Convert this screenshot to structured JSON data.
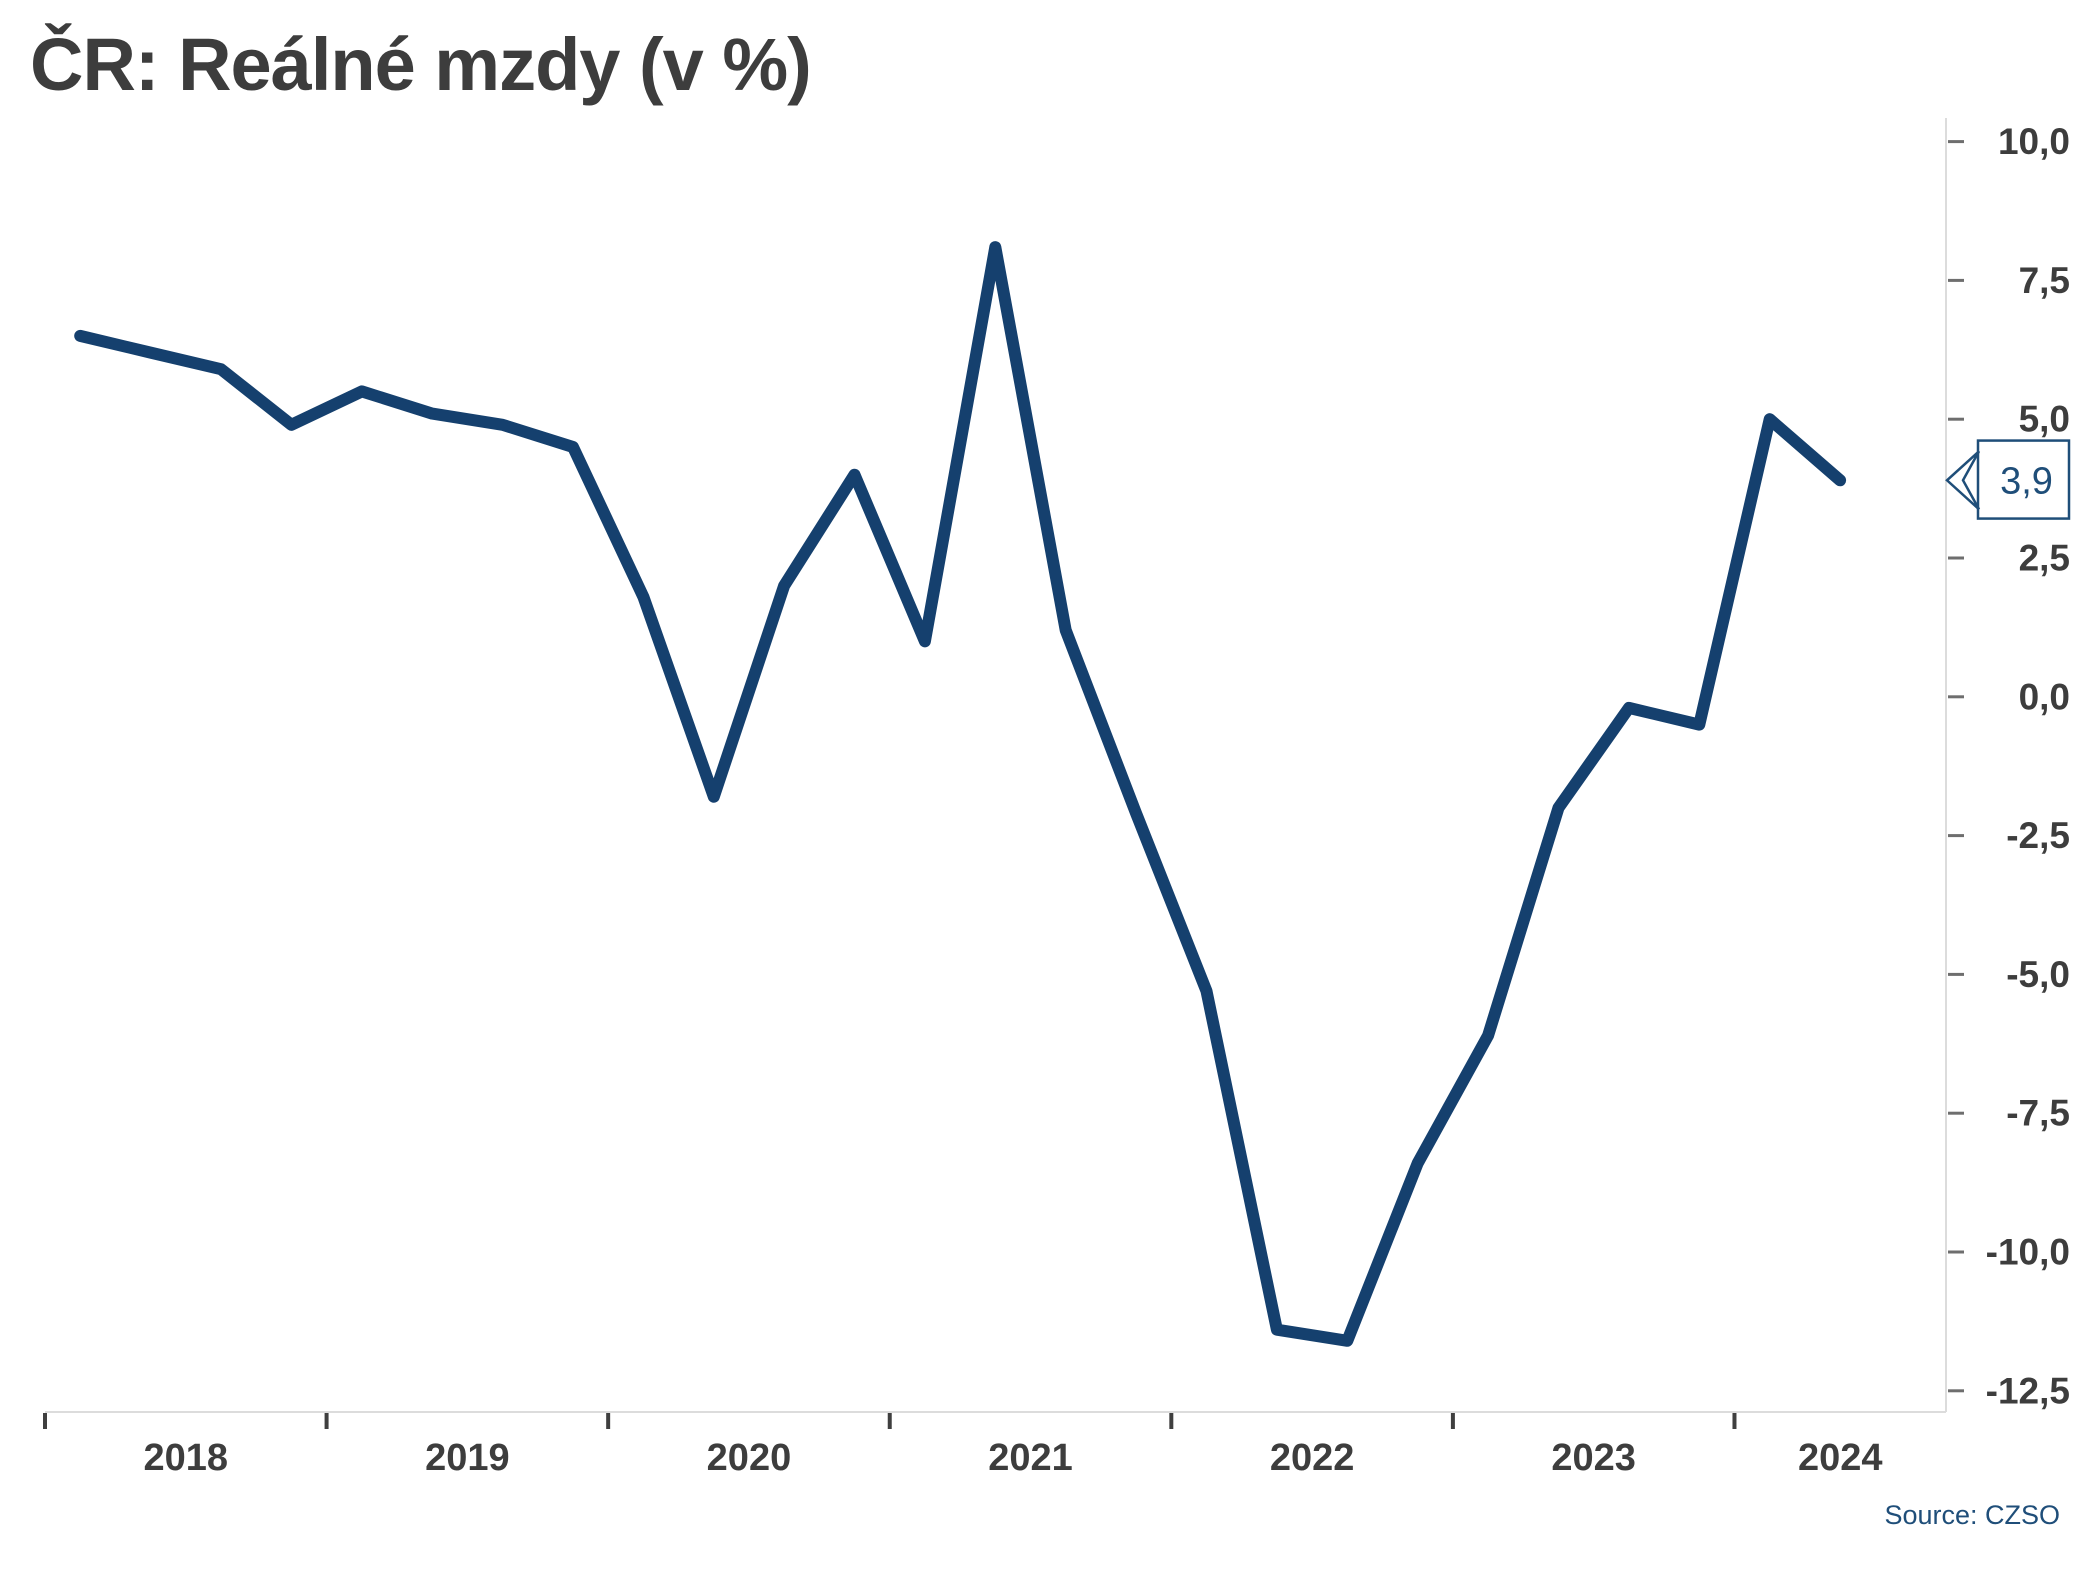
{
  "title": "ČR: Reálné mzdy (v %)",
  "source": {
    "text": "Source: CZSO"
  },
  "callout": {
    "label": "3,9"
  },
  "colors": {
    "line": "#15406e",
    "accent": "#1f4e79",
    "axis_text": "#3d3d3d",
    "axis_line": "#dcdcdc",
    "y_tick": "#6e6e6e",
    "x_tick": "#3f3f3f",
    "background": "#ffffff"
  },
  "chart_data": {
    "type": "line",
    "title": "ČR: Reálné mzdy (v %)",
    "unit": "%",
    "x": [
      "2018-Q1",
      "2018-Q2",
      "2018-Q3",
      "2018-Q4",
      "2019-Q1",
      "2019-Q2",
      "2019-Q3",
      "2019-Q4",
      "2020-Q1",
      "2020-Q2",
      "2020-Q3",
      "2020-Q4",
      "2021-Q1",
      "2021-Q2",
      "2021-Q3",
      "2021-Q4",
      "2022-Q1",
      "2022-Q2",
      "2022-Q3",
      "2022-Q4",
      "2023-Q1",
      "2023-Q2",
      "2023-Q3",
      "2023-Q4",
      "2024-Q1",
      "2024-Q2"
    ],
    "values": [
      6.5,
      6.2,
      5.9,
      4.9,
      5.5,
      5.1,
      4.9,
      4.5,
      1.8,
      -1.8,
      2.0,
      4.0,
      1.0,
      8.1,
      1.2,
      -2.1,
      -5.3,
      -11.4,
      -11.6,
      -8.4,
      -6.1,
      -2.0,
      -0.2,
      -0.5,
      5.0,
      3.9
    ],
    "year_tick_labels": [
      "2018",
      "2019",
      "2020",
      "2021",
      "2022",
      "2023",
      "2024"
    ],
    "y_ticks": [
      {
        "value": 10.0,
        "label": "10,0"
      },
      {
        "value": 7.5,
        "label": "7,5"
      },
      {
        "value": 5.0,
        "label": "5,0"
      },
      {
        "value": 2.5,
        "label": "2,5"
      },
      {
        "value": 0.0,
        "label": "0,0"
      },
      {
        "value": -2.5,
        "label": "-2,5"
      },
      {
        "value": -5.0,
        "label": "-5,0"
      },
      {
        "value": -7.5,
        "label": "-7,5"
      },
      {
        "value": -10.0,
        "label": "-10,0"
      },
      {
        "value": -12.5,
        "label": "-12,5"
      }
    ],
    "ylim": [
      -12.5,
      10.0
    ],
    "grid": false,
    "axis_side": "right",
    "legend": null,
    "last_point_label": "3,9"
  }
}
